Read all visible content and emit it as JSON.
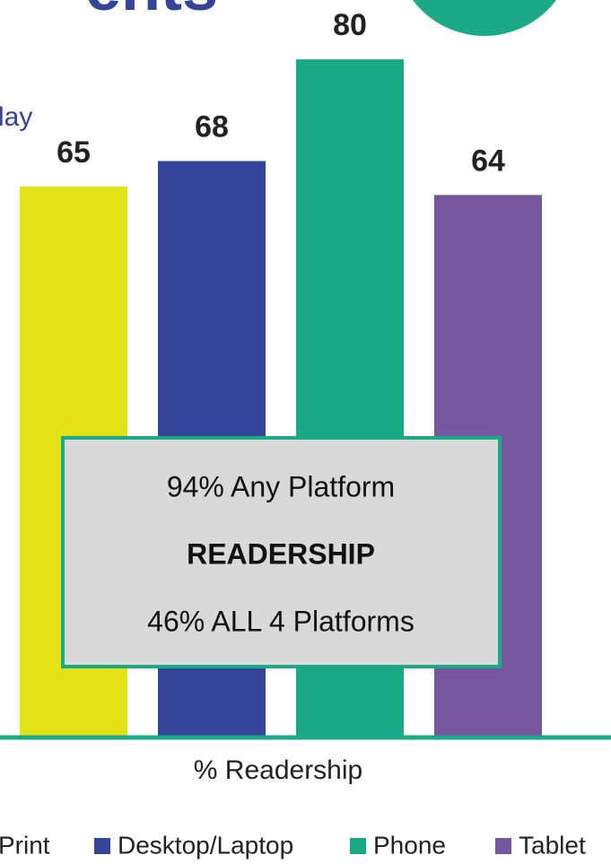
{
  "chart_data": {
    "type": "bar",
    "title": "ents",
    "subtitle": "lay",
    "categories": [
      "Print",
      "Desktop/Laptop",
      "Phone",
      "Tablet"
    ],
    "values": [
      65,
      68,
      80,
      64
    ],
    "colors": [
      "#e2e216",
      "#334499",
      "#1aaa88",
      "#7756a0"
    ],
    "ylim": [
      0,
      87
    ],
    "x_label": "% Readership",
    "annotations": [
      "94% Any Platform",
      "READERSHIP",
      "46% ALL 4 Platforms"
    ],
    "legend": "bottom"
  }
}
